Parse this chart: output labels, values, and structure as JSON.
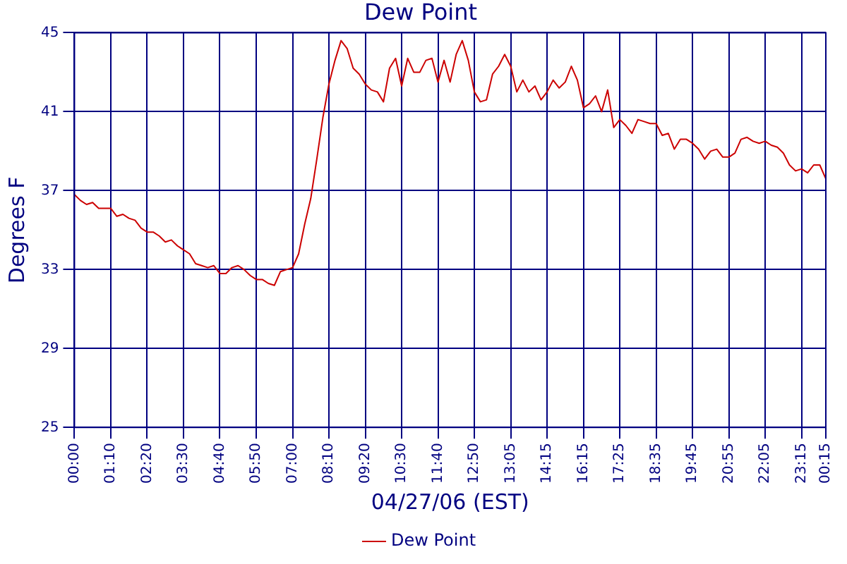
{
  "chart_data": {
    "type": "line",
    "title": "Dew Point",
    "xlabel": "04/27/06 (EST)",
    "ylabel": "Degrees F",
    "categories": [
      "00:00",
      null,
      null,
      null,
      null,
      null,
      "01:10",
      null,
      null,
      null,
      null,
      null,
      "02:20",
      null,
      null,
      null,
      null,
      null,
      "03:30",
      null,
      null,
      null,
      null,
      null,
      "04:40",
      null,
      null,
      null,
      null,
      null,
      "05:50",
      null,
      null,
      null,
      null,
      null,
      "07:00",
      null,
      null,
      null,
      null,
      null,
      "08:10",
      null,
      null,
      null,
      null,
      null,
      "09:20",
      null,
      null,
      null,
      null,
      null,
      "10:30",
      null,
      null,
      null,
      null,
      null,
      "11:40",
      null,
      null,
      null,
      null,
      null,
      "12:50",
      null,
      null,
      null,
      null,
      null,
      "13:05",
      null,
      null,
      null,
      null,
      null,
      "14:15",
      null,
      null,
      null,
      null,
      null,
      "16:15",
      null,
      null,
      null,
      null,
      null,
      "17:25",
      null,
      null,
      null,
      null,
      null,
      "18:35",
      null,
      null,
      null,
      null,
      null,
      "19:45",
      null,
      null,
      null,
      null,
      null,
      "20:55",
      null,
      null,
      null,
      null,
      null,
      "22:05",
      null,
      null,
      null,
      null,
      null,
      "23:15",
      null,
      null,
      null,
      "00:15"
    ],
    "series": [
      {
        "name": "Dew Point",
        "color": "#cc0000",
        "values": [
          36.8,
          36.5,
          36.3,
          36.4,
          36.1,
          36.1,
          36.1,
          35.7,
          35.8,
          35.6,
          35.5,
          35.1,
          34.9,
          34.9,
          34.7,
          34.4,
          34.5,
          34.2,
          34.0,
          33.8,
          33.3,
          33.2,
          33.1,
          33.2,
          32.8,
          32.8,
          33.1,
          33.2,
          33.0,
          32.7,
          32.5,
          32.5,
          32.3,
          32.2,
          32.9,
          33.0,
          33.1,
          33.8,
          35.3,
          36.6,
          38.6,
          40.7,
          42.4,
          43.6,
          44.6,
          44.2,
          43.2,
          42.9,
          42.4,
          42.1,
          42.0,
          41.5,
          43.2,
          43.7,
          42.3,
          43.7,
          43.0,
          43.0,
          43.6,
          43.7,
          42.5,
          43.6,
          42.5,
          43.9,
          44.6,
          43.6,
          42.0,
          41.5,
          41.6,
          42.9,
          43.3,
          43.9,
          43.3,
          42.0,
          42.6,
          42.0,
          42.3,
          41.6,
          42.0,
          42.6,
          42.2,
          42.5,
          43.3,
          42.6,
          41.2,
          41.4,
          41.8,
          41.0,
          42.1,
          40.2,
          40.6,
          40.3,
          39.9,
          40.6,
          40.5,
          40.4,
          40.4,
          39.8,
          39.9,
          39.1,
          39.6,
          39.6,
          39.4,
          39.1,
          38.6,
          39.0,
          39.1,
          38.7,
          38.7,
          38.9,
          39.6,
          39.7,
          39.5,
          39.4,
          39.5,
          39.3,
          39.2,
          38.9,
          38.3,
          38.0,
          38.1,
          37.9,
          38.3,
          38.3,
          37.6
        ]
      }
    ],
    "ylim": [
      25,
      45
    ],
    "yticks": [
      25,
      29,
      33,
      37,
      41,
      45
    ],
    "grid": true,
    "legend": "bottom",
    "marker": "none",
    "line_style": "solid"
  }
}
